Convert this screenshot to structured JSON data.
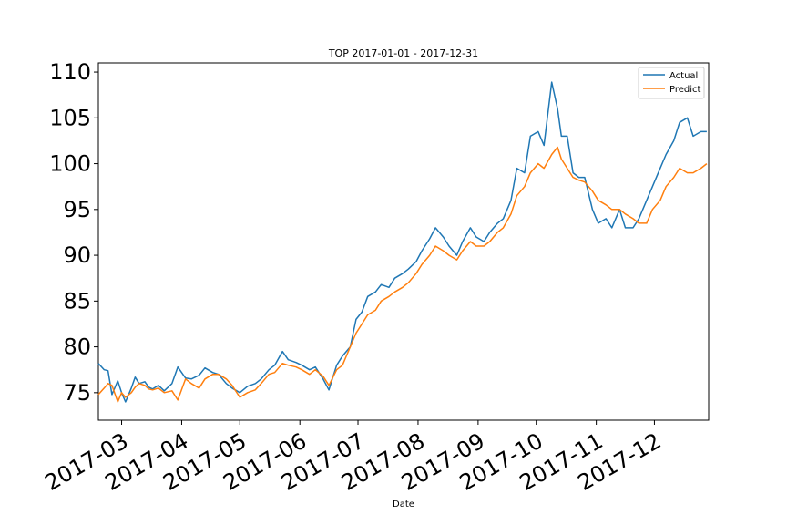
{
  "chart_data": {
    "type": "line",
    "title": "TOP 2017-01-01 - 2017-12-31",
    "xlabel": "Date",
    "ylabel": "",
    "xlim": [
      "2017-02-17",
      "2017-12-29"
    ],
    "ylim": [
      72,
      111
    ],
    "yticks": [
      75,
      80,
      85,
      90,
      95,
      100,
      105,
      110
    ],
    "xticks": [
      "2017-03",
      "2017-04",
      "2017-05",
      "2017-06",
      "2017-07",
      "2017-08",
      "2017-09",
      "2017-10",
      "2017-11",
      "2017-12"
    ],
    "grid": false,
    "legend_position": "top-right",
    "series": [
      {
        "name": "Actual",
        "color": "#1f77b4",
        "x": [
          "2017-02-17",
          "2017-02-20",
          "2017-02-22",
          "2017-02-24",
          "2017-02-27",
          "2017-03-01",
          "2017-03-03",
          "2017-03-06",
          "2017-03-08",
          "2017-03-10",
          "2017-03-13",
          "2017-03-15",
          "2017-03-17",
          "2017-03-20",
          "2017-03-23",
          "2017-03-27",
          "2017-03-30",
          "2017-04-03",
          "2017-04-06",
          "2017-04-10",
          "2017-04-13",
          "2017-04-17",
          "2017-04-20",
          "2017-04-24",
          "2017-04-27",
          "2017-05-01",
          "2017-05-05",
          "2017-05-09",
          "2017-05-12",
          "2017-05-16",
          "2017-05-19",
          "2017-05-23",
          "2017-05-26",
          "2017-05-30",
          "2017-06-02",
          "2017-06-06",
          "2017-06-09",
          "2017-06-13",
          "2017-06-16",
          "2017-06-20",
          "2017-06-23",
          "2017-06-27",
          "2017-06-30",
          "2017-07-03",
          "2017-07-06",
          "2017-07-10",
          "2017-07-13",
          "2017-07-17",
          "2017-07-20",
          "2017-07-24",
          "2017-07-27",
          "2017-07-31",
          "2017-08-03",
          "2017-08-07",
          "2017-08-10",
          "2017-08-14",
          "2017-08-17",
          "2017-08-21",
          "2017-08-24",
          "2017-08-28",
          "2017-08-31",
          "2017-09-04",
          "2017-09-07",
          "2017-09-11",
          "2017-09-14",
          "2017-09-18",
          "2017-09-21",
          "2017-09-25",
          "2017-09-28",
          "2017-10-02",
          "2017-10-05",
          "2017-10-09",
          "2017-10-12",
          "2017-10-14",
          "2017-10-17",
          "2017-10-20",
          "2017-10-23",
          "2017-10-26",
          "2017-10-30",
          "2017-11-02",
          "2017-11-06",
          "2017-11-09",
          "2017-11-13",
          "2017-11-16",
          "2017-11-20",
          "2017-11-23",
          "2017-11-27",
          "2017-11-30",
          "2017-12-04",
          "2017-12-07",
          "2017-12-11",
          "2017-12-14",
          "2017-12-18",
          "2017-12-21",
          "2017-12-25",
          "2017-12-28"
        ],
        "values": [
          78.2,
          77.5,
          77.4,
          74.8,
          76.3,
          75.0,
          74.0,
          75.5,
          76.7,
          76.0,
          76.2,
          75.6,
          75.4,
          75.8,
          75.2,
          76.0,
          77.8,
          76.6,
          76.5,
          76.9,
          77.7,
          77.2,
          77.0,
          76.0,
          75.5,
          75.0,
          75.7,
          76.0,
          76.5,
          77.5,
          78.0,
          79.5,
          78.6,
          78.3,
          78.0,
          77.5,
          77.8,
          76.5,
          75.3,
          78.0,
          79.0,
          80.0,
          83.0,
          83.8,
          85.5,
          86.0,
          86.8,
          86.5,
          87.5,
          88.0,
          88.5,
          89.3,
          90.5,
          91.8,
          93.0,
          92.0,
          91.0,
          90.0,
          91.5,
          93.0,
          92.0,
          91.5,
          92.5,
          93.5,
          94.0,
          96.0,
          99.5,
          99.0,
          103.0,
          103.5,
          102.0,
          108.9,
          106.0,
          103.0,
          103.0,
          99.0,
          98.5,
          98.5,
          95.0,
          93.5,
          94.0,
          93.0,
          95.0,
          93.0,
          93.0,
          94.0,
          96.0,
          97.5,
          99.5,
          101.0,
          102.5,
          104.5,
          105.0,
          103.0,
          103.5,
          103.5
        ]
      },
      {
        "name": "Predict",
        "color": "#ff7f0e",
        "x": [
          "2017-02-17",
          "2017-02-20",
          "2017-02-22",
          "2017-02-24",
          "2017-02-27",
          "2017-03-01",
          "2017-03-03",
          "2017-03-06",
          "2017-03-08",
          "2017-03-10",
          "2017-03-13",
          "2017-03-15",
          "2017-03-17",
          "2017-03-20",
          "2017-03-23",
          "2017-03-27",
          "2017-03-30",
          "2017-04-03",
          "2017-04-06",
          "2017-04-10",
          "2017-04-13",
          "2017-04-17",
          "2017-04-20",
          "2017-04-24",
          "2017-04-27",
          "2017-05-01",
          "2017-05-05",
          "2017-05-09",
          "2017-05-12",
          "2017-05-16",
          "2017-05-19",
          "2017-05-23",
          "2017-05-26",
          "2017-05-30",
          "2017-06-02",
          "2017-06-06",
          "2017-06-09",
          "2017-06-13",
          "2017-06-16",
          "2017-06-20",
          "2017-06-23",
          "2017-06-27",
          "2017-06-30",
          "2017-07-03",
          "2017-07-06",
          "2017-07-10",
          "2017-07-13",
          "2017-07-17",
          "2017-07-20",
          "2017-07-24",
          "2017-07-27",
          "2017-07-31",
          "2017-08-03",
          "2017-08-07",
          "2017-08-10",
          "2017-08-14",
          "2017-08-17",
          "2017-08-21",
          "2017-08-24",
          "2017-08-28",
          "2017-08-31",
          "2017-09-04",
          "2017-09-07",
          "2017-09-11",
          "2017-09-14",
          "2017-09-18",
          "2017-09-21",
          "2017-09-25",
          "2017-09-28",
          "2017-10-02",
          "2017-10-05",
          "2017-10-09",
          "2017-10-12",
          "2017-10-14",
          "2017-10-17",
          "2017-10-20",
          "2017-10-23",
          "2017-10-26",
          "2017-10-30",
          "2017-11-02",
          "2017-11-06",
          "2017-11-09",
          "2017-11-13",
          "2017-11-16",
          "2017-11-20",
          "2017-11-23",
          "2017-11-27",
          "2017-11-30",
          "2017-12-04",
          "2017-12-07",
          "2017-12-11",
          "2017-12-14",
          "2017-12-18",
          "2017-12-21",
          "2017-12-25",
          "2017-12-28"
        ],
        "values": [
          74.8,
          75.5,
          76.0,
          75.8,
          74.0,
          75.0,
          74.5,
          75.0,
          75.6,
          76.0,
          75.8,
          75.4,
          75.3,
          75.5,
          75.0,
          75.2,
          74.2,
          76.5,
          76.0,
          75.5,
          76.5,
          77.0,
          77.0,
          76.5,
          75.8,
          74.5,
          75.0,
          75.3,
          76.0,
          77.0,
          77.2,
          78.2,
          78.0,
          77.8,
          77.5,
          77.0,
          77.5,
          76.8,
          75.8,
          77.5,
          78.0,
          80.0,
          81.5,
          82.5,
          83.5,
          84.0,
          85.0,
          85.5,
          86.0,
          86.5,
          87.0,
          88.0,
          89.0,
          90.0,
          91.0,
          90.5,
          90.0,
          89.5,
          90.5,
          91.5,
          91.0,
          91.0,
          91.5,
          92.5,
          93.0,
          94.5,
          96.5,
          97.5,
          99.0,
          100.0,
          99.5,
          101.0,
          101.8,
          100.5,
          99.5,
          98.5,
          98.2,
          98.0,
          97.0,
          96.0,
          95.5,
          95.0,
          95.0,
          94.5,
          94.0,
          93.5,
          93.5,
          95.0,
          96.0,
          97.5,
          98.5,
          99.5,
          99.0,
          99.0,
          99.5,
          100.0
        ]
      }
    ]
  }
}
